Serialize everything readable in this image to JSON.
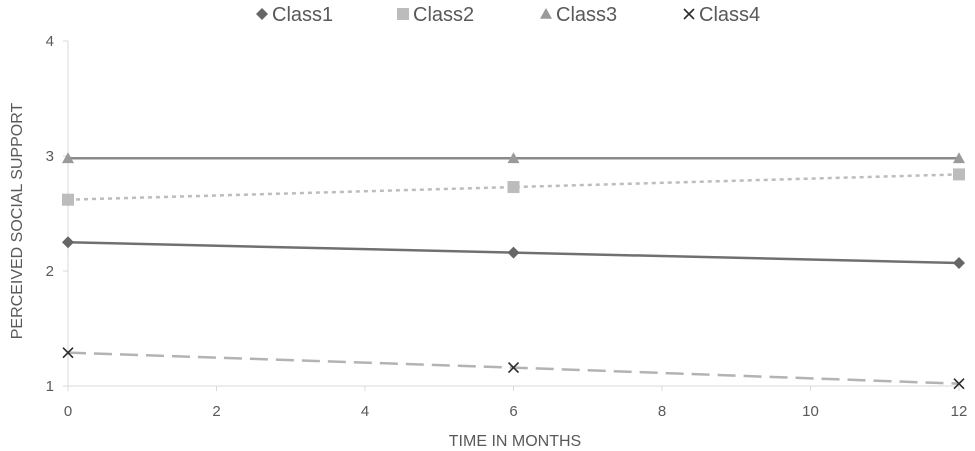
{
  "chart_data": {
    "type": "line",
    "xlabel": "TIME  IN MONTHS",
    "ylabel": "PERCEIVED SOCIAL SUPPORT",
    "xlim": [
      0,
      12
    ],
    "ylim": [
      1,
      4
    ],
    "xticks": [
      0,
      2,
      4,
      6,
      8,
      10,
      12
    ],
    "yticks": [
      1,
      2,
      3,
      4
    ],
    "grid": {
      "horizontal": false,
      "vertical": false
    },
    "legend_position": "top",
    "x": [
      0,
      6,
      12
    ],
    "series": [
      {
        "name": "Class1",
        "values": [
          2.25,
          2.16,
          2.07
        ],
        "marker": "diamond",
        "line": "solid",
        "color": "#707070",
        "marker_color": "#666666"
      },
      {
        "name": "Class2",
        "values": [
          2.62,
          2.73,
          2.84
        ],
        "marker": "square",
        "line": "dotted",
        "color": "#bdbdbd",
        "marker_color": "#bcbcbc"
      },
      {
        "name": "Class3",
        "values": [
          2.98,
          2.98,
          2.98
        ],
        "marker": "triangle",
        "line": "solid",
        "color": "#8a8a8a",
        "marker_color": "#9a9a9a"
      },
      {
        "name": "Class4",
        "values": [
          1.29,
          1.16,
          1.02
        ],
        "marker": "x",
        "line": "long-dashed",
        "color": "#b3b3b3",
        "marker_color": "#2b2b2b"
      }
    ]
  }
}
